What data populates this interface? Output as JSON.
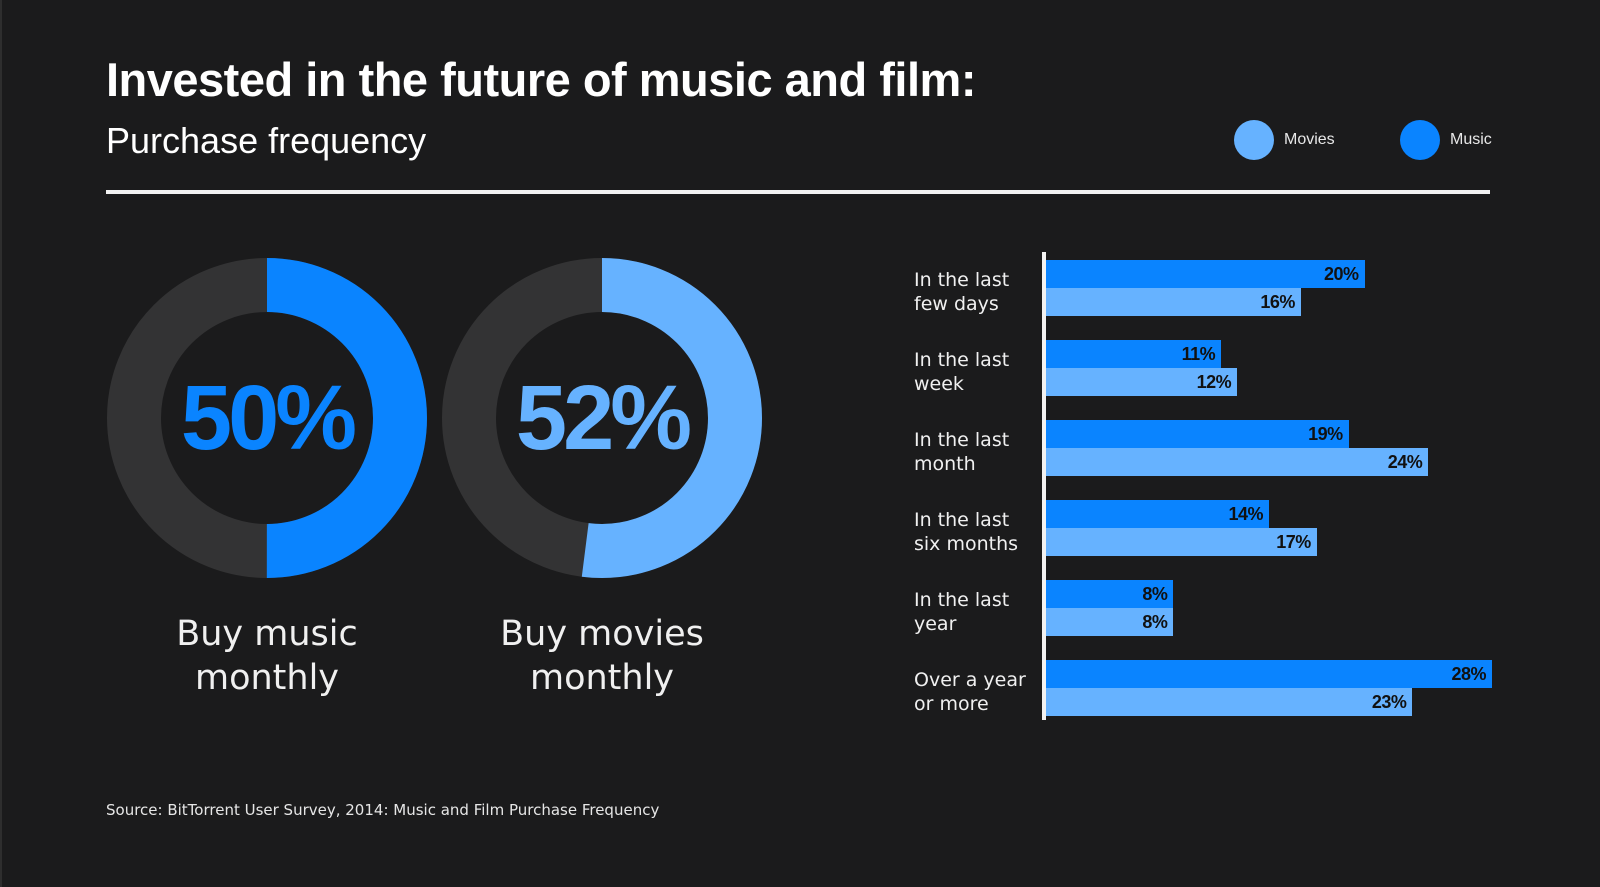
{
  "header": {
    "title": "Invested in the future of music and film:",
    "subtitle": "Purchase frequency"
  },
  "legend": [
    {
      "label": "Movies",
      "color": "#66b2ff"
    },
    {
      "label": "Music",
      "color": "#0a84ff"
    }
  ],
  "colors": {
    "music": "#0a84ff",
    "movies": "#66b2ff",
    "donut_track": "#333334",
    "background": "#1b1b1c"
  },
  "donuts": [
    {
      "value_label": "50%",
      "value": 50,
      "caption_lines": [
        "Buy music",
        "monthly"
      ],
      "series": "music"
    },
    {
      "value_label": "52%",
      "value": 52,
      "caption_lines": [
        "Buy movies",
        "monthly"
      ],
      "series": "movies"
    }
  ],
  "chart_data": {
    "type": "bar",
    "orientation": "horizontal",
    "title": "Purchase frequency",
    "categories": [
      [
        "In the last",
        "few days"
      ],
      [
        "In the last",
        "week"
      ],
      [
        "In the last",
        "month"
      ],
      [
        "In the last",
        "six months"
      ],
      [
        "In the last",
        "year"
      ],
      [
        "Over a year",
        "or more"
      ]
    ],
    "series": [
      {
        "name": "Music",
        "values": [
          20,
          11,
          19,
          14,
          8,
          28
        ],
        "labels": [
          "20%",
          "11%",
          "19%",
          "14%",
          "8%",
          "28%"
        ]
      },
      {
        "name": "Movies",
        "values": [
          16,
          12,
          24,
          17,
          8,
          23
        ],
        "labels": [
          "16%",
          "12%",
          "24%",
          "17%",
          "8%",
          "23%"
        ]
      }
    ],
    "xlim": [
      0,
      28
    ],
    "legend_position": "top-right"
  },
  "footer": {
    "source": "Source: BitTorrent User Survey, 2014: Music and Film Purchase Frequency"
  }
}
